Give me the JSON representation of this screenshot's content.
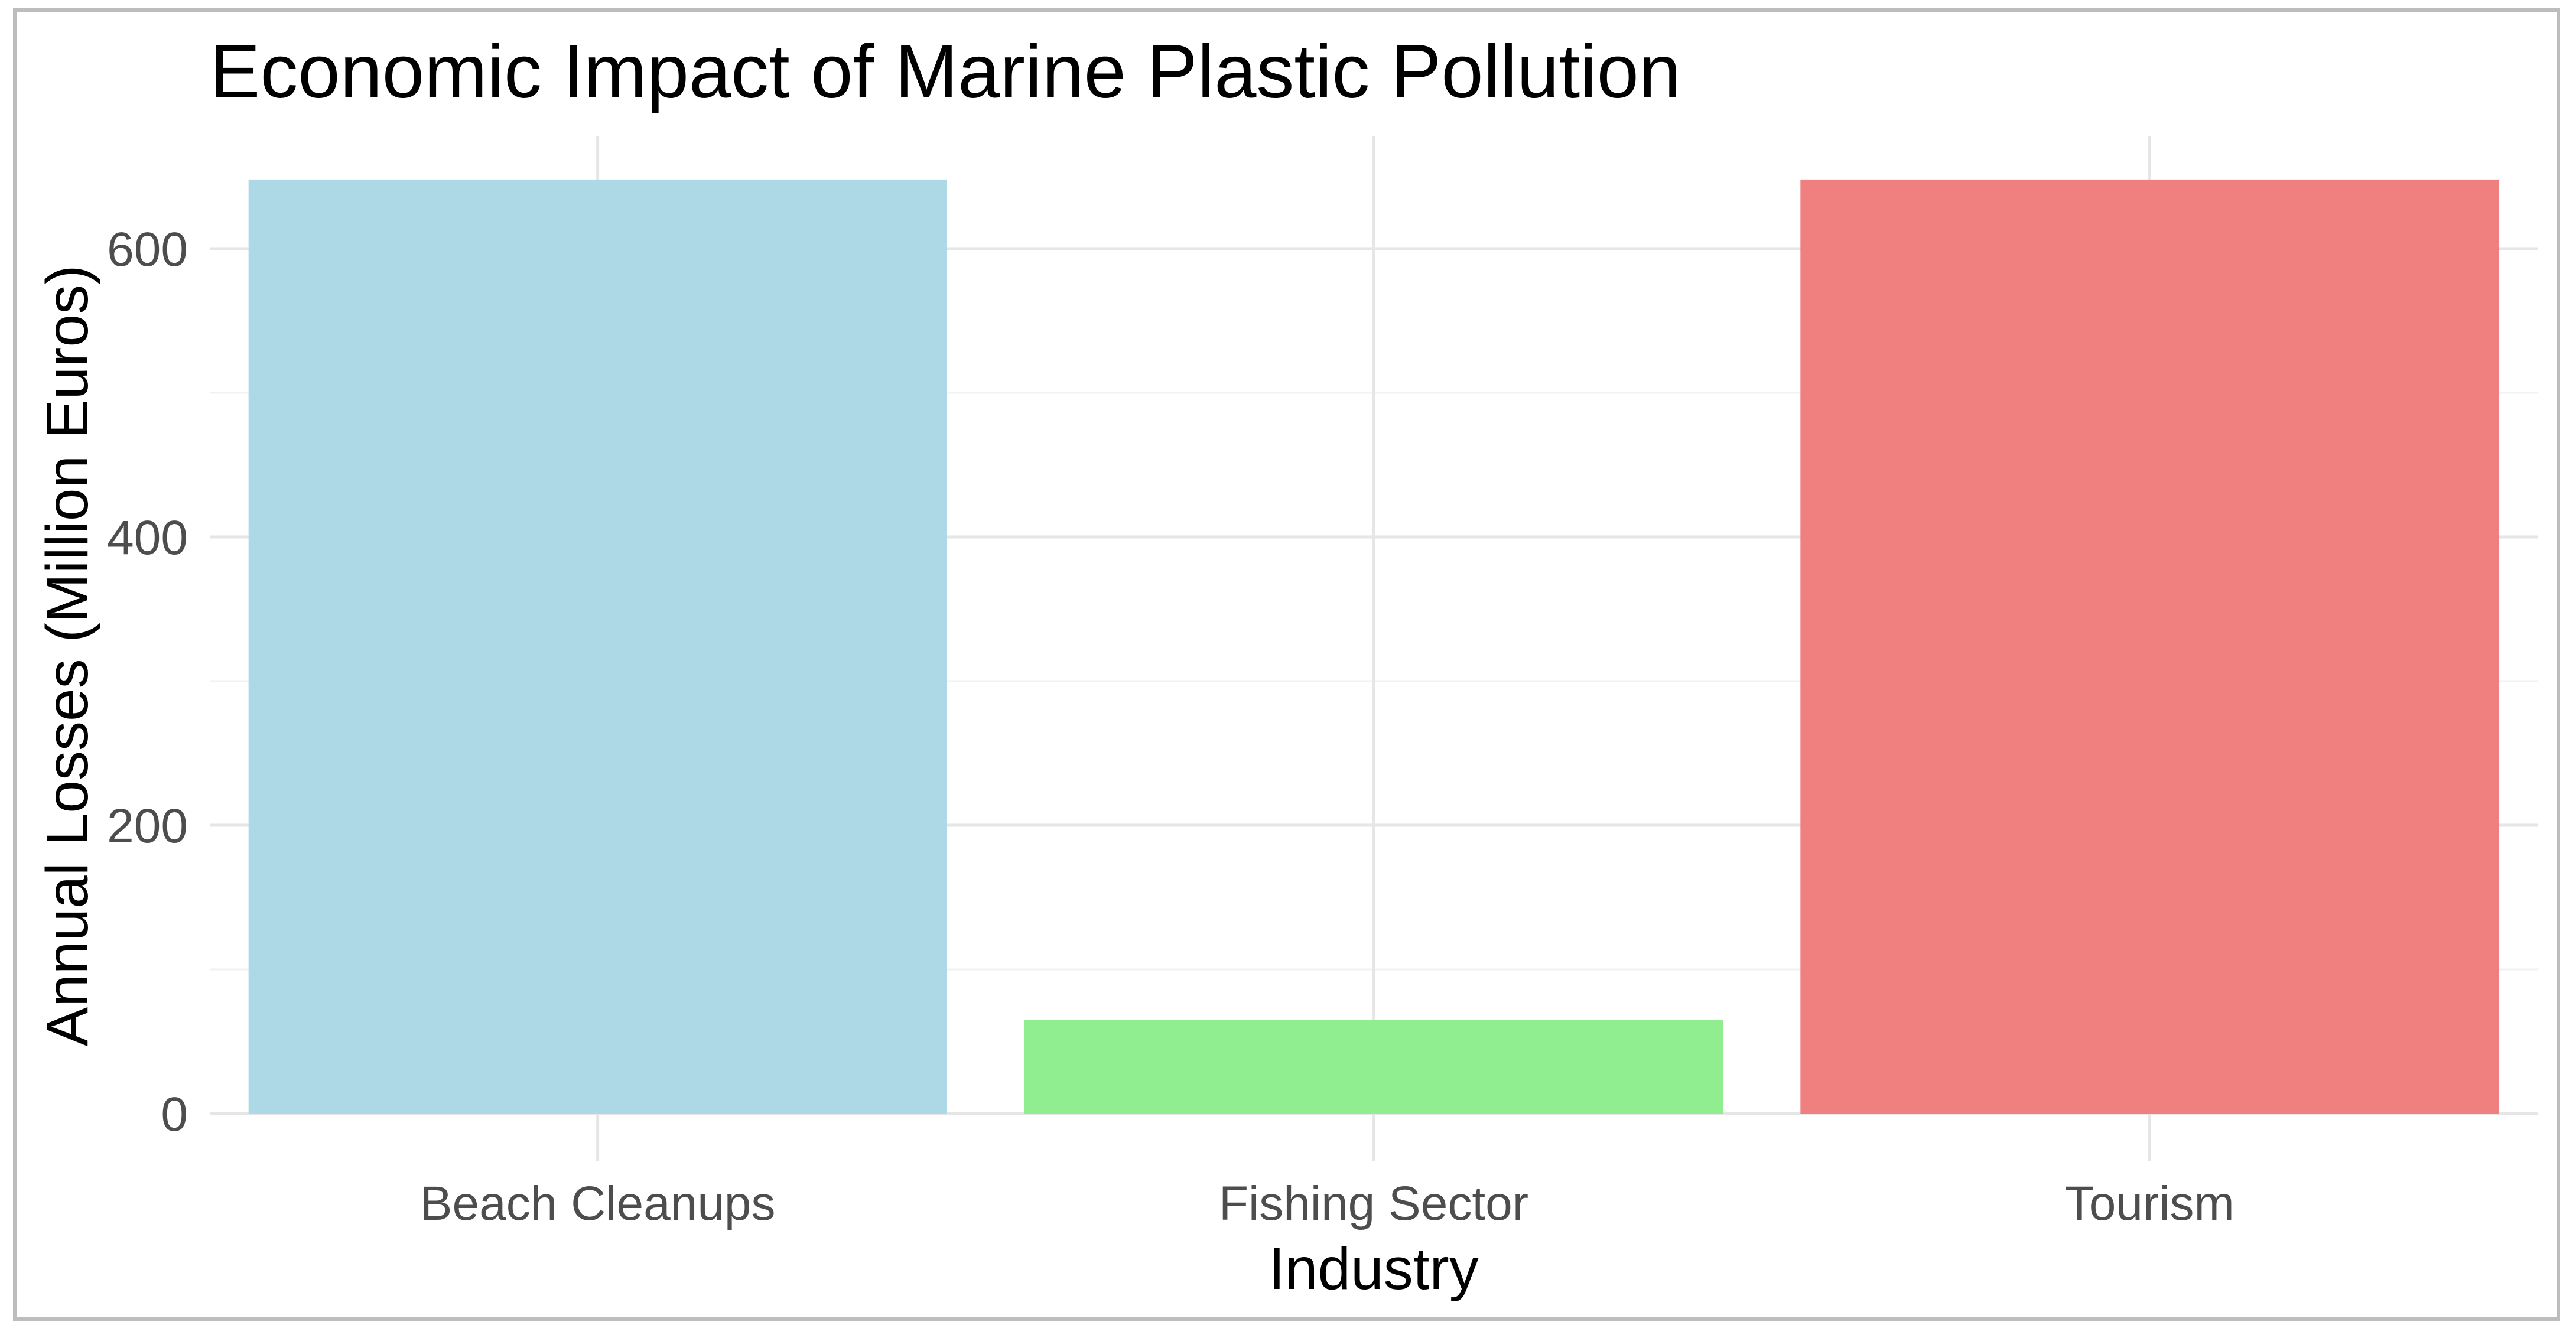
{
  "chart_data": {
    "type": "bar",
    "title": "Economic Impact of Marine Plastic Pollution",
    "xlabel": "Industry",
    "ylabel": "Annual Losses (Million Euros)",
    "categories": [
      "Beach Cleanups",
      "Fishing Sector",
      "Tourism"
    ],
    "values": [
      648,
      65,
      648
    ],
    "colors": [
      "#add8e6",
      "#90ee90",
      "#f08080"
    ],
    "ylim": [
      0,
      680
    ],
    "yticks": [
      0,
      200,
      400,
      600
    ],
    "ytick_labels": [
      "0",
      "200",
      "400",
      "600"
    ],
    "grid": true,
    "legend": "none"
  }
}
